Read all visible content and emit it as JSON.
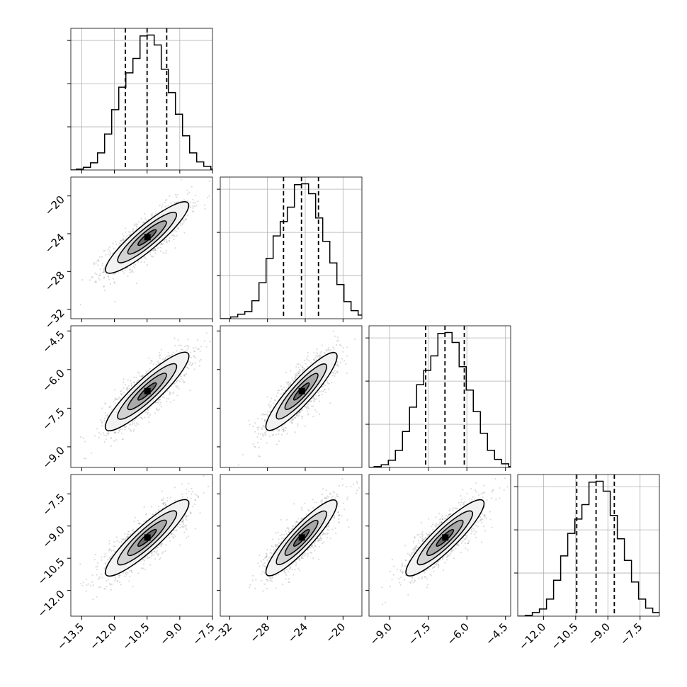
{
  "chart_data": {
    "type": "corner",
    "description_free": true,
    "parameters": [
      {
        "range": [
          -14.0,
          -7.5
        ],
        "ticks": [
          "-13.5",
          "-12.0",
          "-10.5",
          "-9.0",
          "-7.5"
        ],
        "tick_values": [
          -13.5,
          -12.0,
          -10.5,
          -9.0,
          -7.5
        ],
        "quantiles": [
          -11.5,
          -10.5,
          -9.6
        ],
        "hist_bin_width": 0.325,
        "hist_counts": [
          1,
          3,
          8,
          19,
          40,
          67,
          92,
          108,
          124,
          149,
          150,
          139,
          112,
          86,
          62,
          38,
          19,
          9,
          4,
          1
        ]
      },
      {
        "range": [
          -33.0,
          -18.0
        ],
        "ticks": [
          "-32",
          "-28",
          "-24",
          "-20"
        ],
        "tick_values": [
          -32,
          -28,
          -24,
          -20
        ],
        "quantiles": [
          -26.3,
          -24.4,
          -22.6
        ],
        "hist_bin_width": 0.75,
        "hist_counts": [
          2,
          5,
          8,
          20,
          40,
          67,
          92,
          108,
          124,
          149,
          150,
          139,
          112,
          86,
          62,
          38,
          19,
          9,
          4,
          1
        ]
      },
      {
        "range": [
          -9.8,
          -4.3
        ],
        "ticks": [
          "-9.0",
          "-7.5",
          "-6.0",
          "-4.5"
        ],
        "tick_values": [
          -9.0,
          -7.5,
          -6.0,
          -4.5
        ],
        "quantiles": [
          -7.6,
          -6.85,
          -6.1
        ],
        "hist_bin_width": 0.275,
        "hist_counts": [
          1,
          3,
          8,
          19,
          40,
          67,
          92,
          108,
          124,
          149,
          150,
          139,
          112,
          86,
          62,
          38,
          19,
          9,
          4,
          1
        ]
      },
      {
        "range": [
          -13.2,
          -6.6
        ],
        "ticks": [
          "-12.0",
          "-10.5",
          "-9.0",
          "-7.5"
        ],
        "tick_values": [
          -12.0,
          -10.5,
          -9.0,
          -7.5
        ],
        "quantiles": [
          -10.45,
          -9.55,
          -8.7
        ],
        "hist_bin_width": 0.33,
        "hist_counts": [
          1,
          4,
          8,
          19,
          40,
          67,
          92,
          108,
          124,
          149,
          150,
          139,
          112,
          86,
          62,
          38,
          19,
          9,
          4,
          1
        ]
      }
    ],
    "contour_levels": 4,
    "grid": true
  }
}
